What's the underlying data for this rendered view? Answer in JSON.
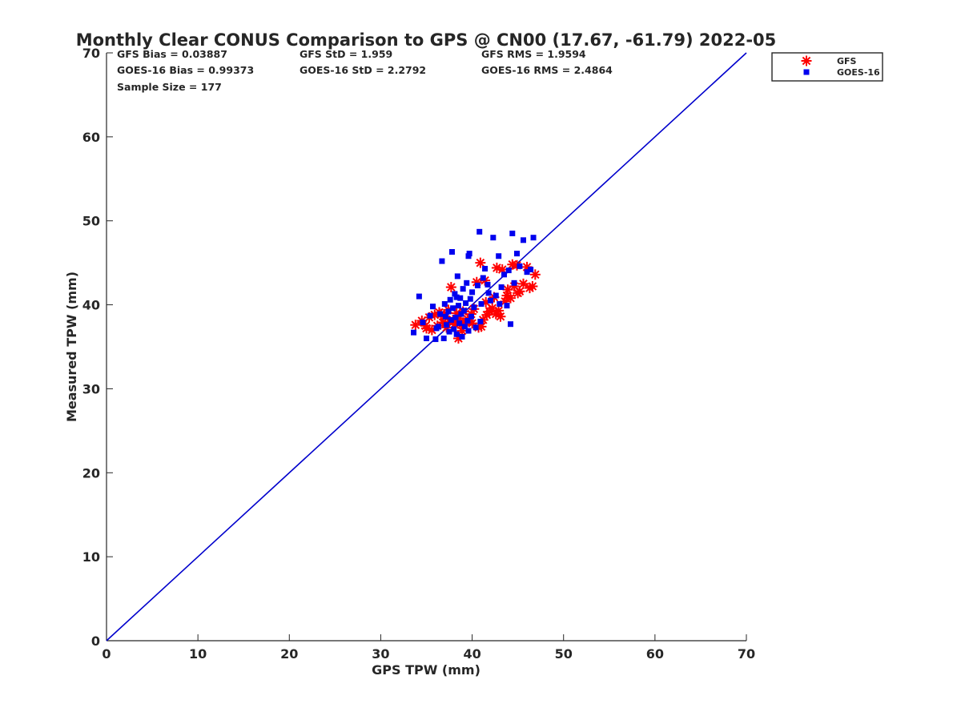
{
  "chart_data": {
    "type": "scatter",
    "title": "Monthly Clear CONUS Comparison to GPS @ CN00 (17.67, -61.79) 2022-05",
    "xlabel": "GPS TPW (mm)",
    "ylabel": "Measured TPW (mm)",
    "xlim": [
      0,
      70
    ],
    "ylim": [
      0,
      70
    ],
    "xticks": [
      0,
      10,
      20,
      30,
      40,
      50,
      60,
      70
    ],
    "yticks": [
      0,
      10,
      20,
      30,
      40,
      50,
      60,
      70
    ],
    "grid": false,
    "legend_position": "outside-top-right",
    "stats": [
      [
        "GFS Bias = 0.03887",
        "GFS StD = 1.959",
        "GFS RMS = 1.9594"
      ],
      [
        "GOES-16 Bias = 0.99373",
        "GOES-16 StD = 2.2792",
        "GOES-16 RMS = 2.4864"
      ],
      [
        "Sample Size = 177",
        "",
        ""
      ]
    ],
    "reference_line": {
      "name": "1:1 line",
      "x": [
        0,
        70
      ],
      "y": [
        0,
        70
      ],
      "color": "#0000cc"
    },
    "series": [
      {
        "name": "GFS",
        "marker": "asterisk",
        "color": "#ff0000",
        "points": [
          [
            33.8,
            37.6
          ],
          [
            34.5,
            38.1
          ],
          [
            35.0,
            37.2
          ],
          [
            35.3,
            38.5
          ],
          [
            35.6,
            37.0
          ],
          [
            35.9,
            38.8
          ],
          [
            36.2,
            37.5
          ],
          [
            36.4,
            39.1
          ],
          [
            36.8,
            37.9
          ],
          [
            37.0,
            38.6
          ],
          [
            37.2,
            37.3
          ],
          [
            37.4,
            39.4
          ],
          [
            37.7,
            42.1
          ],
          [
            37.9,
            38.2
          ],
          [
            38.1,
            37.7
          ],
          [
            38.3,
            39.0
          ],
          [
            38.5,
            36.0
          ],
          [
            38.6,
            38.4
          ],
          [
            38.8,
            37.6
          ],
          [
            39.0,
            39.2
          ],
          [
            39.3,
            37.9
          ],
          [
            39.5,
            38.3
          ],
          [
            39.7,
            38.1
          ],
          [
            40.0,
            37.8
          ],
          [
            40.2,
            39.5
          ],
          [
            40.5,
            42.7
          ],
          [
            40.7,
            37.3
          ],
          [
            40.9,
            45.0
          ],
          [
            41.0,
            37.4
          ],
          [
            41.2,
            38.2
          ],
          [
            41.4,
            42.9
          ],
          [
            41.6,
            38.8
          ],
          [
            41.9,
            39.2
          ],
          [
            42.2,
            39.6
          ],
          [
            42.4,
            40.9
          ],
          [
            42.7,
            44.4
          ],
          [
            42.9,
            39.3
          ],
          [
            43.1,
            38.6
          ],
          [
            43.3,
            44.2
          ],
          [
            43.6,
            40.4
          ],
          [
            43.9,
            41.8
          ],
          [
            44.2,
            40.8
          ],
          [
            44.4,
            44.8
          ],
          [
            44.6,
            42.2
          ],
          [
            44.9,
            44.7
          ],
          [
            45.2,
            41.6
          ],
          [
            45.6,
            42.5
          ],
          [
            46.0,
            44.5
          ],
          [
            46.3,
            42.0
          ],
          [
            46.6,
            42.2
          ],
          [
            46.9,
            43.6
          ],
          [
            45.0,
            41.4
          ],
          [
            43.8,
            41.1
          ],
          [
            42.6,
            38.9
          ],
          [
            41.5,
            40.3
          ],
          [
            39.9,
            38.9
          ],
          [
            38.9,
            36.9
          ],
          [
            37.5,
            38.0
          ],
          [
            36.6,
            38.9
          ],
          [
            34.9,
            37.5
          ]
        ]
      },
      {
        "name": "GOES-16",
        "marker": "square",
        "color": "#0000ee",
        "points": [
          [
            33.6,
            36.7
          ],
          [
            34.2,
            41.0
          ],
          [
            34.6,
            37.9
          ],
          [
            35.0,
            36.0
          ],
          [
            35.4,
            38.7
          ],
          [
            35.7,
            39.8
          ],
          [
            36.0,
            35.9
          ],
          [
            36.3,
            37.4
          ],
          [
            36.5,
            38.9
          ],
          [
            36.7,
            45.2
          ],
          [
            36.9,
            36.0
          ],
          [
            37.0,
            40.1
          ],
          [
            37.2,
            37.6
          ],
          [
            37.4,
            39.2
          ],
          [
            37.5,
            36.8
          ],
          [
            37.6,
            40.6
          ],
          [
            37.7,
            38.2
          ],
          [
            37.8,
            46.3
          ],
          [
            37.9,
            39.6
          ],
          [
            38.0,
            37.1
          ],
          [
            38.1,
            41.3
          ],
          [
            38.2,
            38.5
          ],
          [
            38.3,
            36.5
          ],
          [
            38.4,
            43.4
          ],
          [
            38.5,
            39.9
          ],
          [
            38.6,
            37.8
          ],
          [
            38.7,
            40.8
          ],
          [
            38.8,
            38.9
          ],
          [
            38.9,
            36.2
          ],
          [
            39.0,
            41.9
          ],
          [
            39.1,
            39.3
          ],
          [
            39.2,
            37.4
          ],
          [
            39.3,
            40.2
          ],
          [
            39.4,
            42.6
          ],
          [
            39.5,
            38.1
          ],
          [
            39.6,
            45.8
          ],
          [
            39.7,
            46.1
          ],
          [
            39.8,
            40.7
          ],
          [
            39.9,
            38.6
          ],
          [
            40.0,
            41.5
          ],
          [
            40.2,
            39.7
          ],
          [
            40.4,
            37.3
          ],
          [
            40.6,
            42.3
          ],
          [
            40.8,
            48.7
          ],
          [
            41.0,
            40.1
          ],
          [
            41.2,
            43.2
          ],
          [
            41.4,
            44.3
          ],
          [
            41.7,
            42.4
          ],
          [
            42.0,
            40.5
          ],
          [
            42.3,
            48.0
          ],
          [
            42.6,
            41.1
          ],
          [
            42.9,
            45.8
          ],
          [
            43.2,
            42.1
          ],
          [
            43.5,
            43.6
          ],
          [
            43.8,
            39.9
          ],
          [
            44.0,
            44.1
          ],
          [
            44.2,
            37.7
          ],
          [
            44.4,
            48.5
          ],
          [
            44.6,
            42.6
          ],
          [
            44.9,
            46.1
          ],
          [
            45.2,
            44.6
          ],
          [
            45.6,
            47.7
          ],
          [
            46.0,
            43.9
          ],
          [
            46.4,
            44.2
          ],
          [
            46.7,
            48.0
          ],
          [
            40.9,
            38.0
          ],
          [
            39.6,
            36.9
          ],
          [
            38.3,
            40.9
          ],
          [
            37.1,
            38.6
          ],
          [
            36.1,
            37.2
          ],
          [
            41.8,
            41.4
          ],
          [
            43.0,
            40.1
          ]
        ]
      }
    ]
  }
}
